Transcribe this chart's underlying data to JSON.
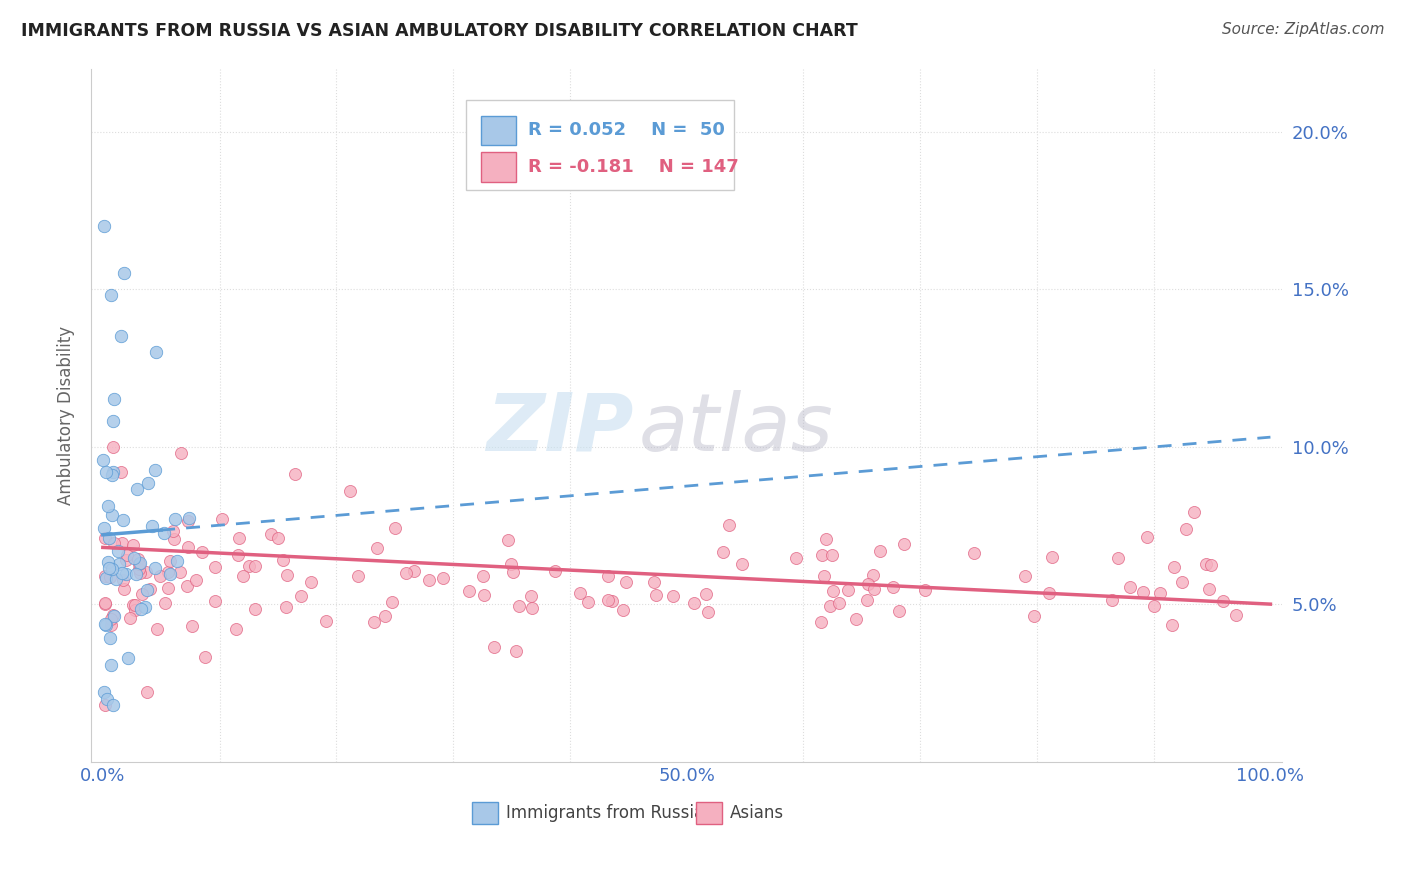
{
  "title": "IMMIGRANTS FROM RUSSIA VS ASIAN AMBULATORY DISABILITY CORRELATION CHART",
  "source": "Source: ZipAtlas.com",
  "ylabel": "Ambulatory Disability",
  "background_color": "#ffffff",
  "grid_color": "#dddddd",
  "blue_color": "#5b9bd5",
  "blue_scatter_color": "#a8c8e8",
  "pink_color": "#e06080",
  "pink_scatter_color": "#f5b0c0",
  "title_color": "#222222",
  "axis_label_color": "#4472c4",
  "watermark_zip_color": "#c8dff0",
  "watermark_atlas_color": "#b8b8c8",
  "russia_R": "0.052",
  "russia_N": "50",
  "asian_R": "-0.181",
  "asian_N": "147",
  "russia_line_x": [
    0,
    5,
    100
  ],
  "russia_line_y": [
    7.2,
    7.35,
    10.3
  ],
  "russia_solid_end": 1,
  "asian_line_x": [
    0,
    100
  ],
  "asian_line_y": [
    6.8,
    5.0
  ],
  "ylim": [
    0,
    22
  ],
  "xlim": [
    -1,
    101
  ],
  "yticks": [
    5.0,
    10.0,
    15.0,
    20.0
  ],
  "ytick_labels": [
    "5.0%",
    "10.0%",
    "15.0%",
    "20.0%"
  ],
  "xticks": [
    0,
    50,
    100
  ],
  "xtick_labels": [
    "0.0%",
    "50.0%",
    "100.0%"
  ]
}
